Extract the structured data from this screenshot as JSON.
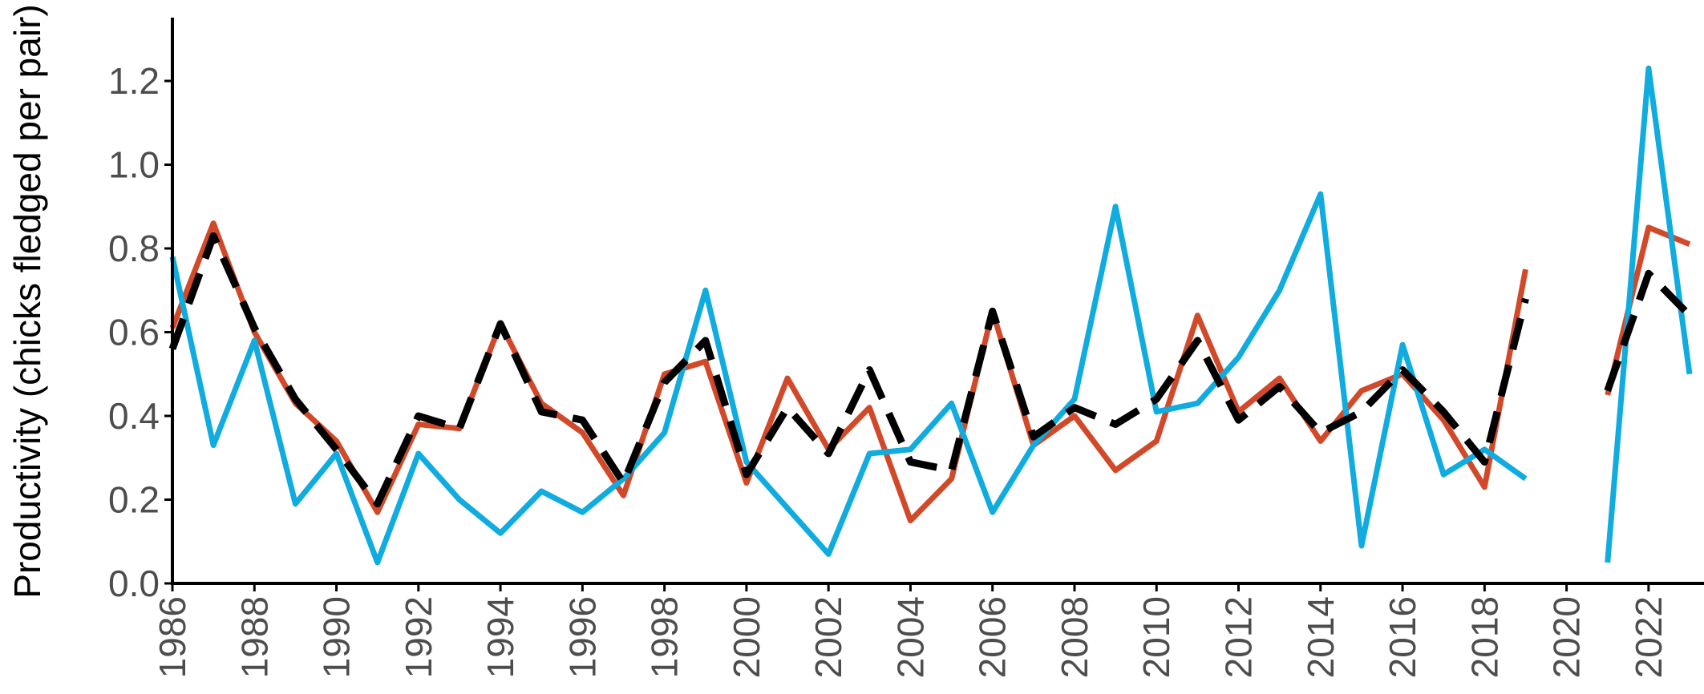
{
  "chart_data": {
    "type": "line",
    "title": "",
    "xlabel": "",
    "ylabel": "Productivity (chicks fledged per pair)",
    "xlim": [
      1986,
      2023
    ],
    "ylim": [
      0,
      1.35
    ],
    "x_ticks": [
      "1986",
      "1988",
      "1990",
      "1992",
      "1994",
      "1996",
      "1998",
      "2000",
      "2002",
      "2004",
      "2006",
      "2008",
      "2010",
      "2012",
      "2014",
      "2016",
      "2018",
      "2020",
      "2022"
    ],
    "y_ticks": [
      "0.0",
      "0.2",
      "0.4",
      "0.6",
      "0.8",
      "1.0",
      "1.2"
    ],
    "grid": false,
    "legend": "none",
    "x": [
      1986,
      1987,
      1988,
      1989,
      1990,
      1991,
      1992,
      1993,
      1994,
      1995,
      1996,
      1997,
      1998,
      1999,
      2000,
      2001,
      2002,
      2003,
      2004,
      2005,
      2006,
      2007,
      2008,
      2009,
      2010,
      2011,
      2012,
      2013,
      2014,
      2015,
      2016,
      2017,
      2018,
      2019,
      2020,
      2021,
      2022,
      2023
    ],
    "series": [
      {
        "color": "#d2492a",
        "style": "solid",
        "values": [
          0.61,
          0.86,
          0.6,
          0.43,
          0.34,
          0.17,
          0.38,
          0.37,
          0.62,
          0.43,
          0.36,
          0.21,
          0.5,
          0.53,
          0.24,
          0.49,
          0.32,
          0.42,
          0.15,
          0.25,
          0.65,
          0.33,
          0.4,
          0.27,
          0.34,
          0.64,
          0.41,
          0.49,
          0.34,
          0.46,
          0.5,
          0.39,
          0.23,
          0.75,
          null,
          0.45,
          0.85,
          0.81
        ]
      },
      {
        "color": "#10acdf",
        "style": "solid",
        "values": [
          0.78,
          0.33,
          0.58,
          0.19,
          0.31,
          0.05,
          0.31,
          0.2,
          0.12,
          0.22,
          0.17,
          0.25,
          0.36,
          0.7,
          0.29,
          0.18,
          0.07,
          0.31,
          0.32,
          0.43,
          0.17,
          0.33,
          0.44,
          0.9,
          0.41,
          0.43,
          0.54,
          0.7,
          0.93,
          0.09,
          0.57,
          0.26,
          0.32,
          0.25,
          null,
          0.05,
          1.23,
          0.5
        ]
      },
      {
        "color": "#000000",
        "style": "dashed",
        "values": [
          0.56,
          0.83,
          0.61,
          0.44,
          0.32,
          0.19,
          0.4,
          0.37,
          0.62,
          0.41,
          0.39,
          0.24,
          0.48,
          0.58,
          0.26,
          0.42,
          0.31,
          0.51,
          0.29,
          0.27,
          0.65,
          0.35,
          0.42,
          0.38,
          0.44,
          0.58,
          0.39,
          0.47,
          0.36,
          0.41,
          0.51,
          0.41,
          0.29,
          0.68,
          null,
          0.46,
          0.74,
          0.64
        ]
      }
    ]
  }
}
